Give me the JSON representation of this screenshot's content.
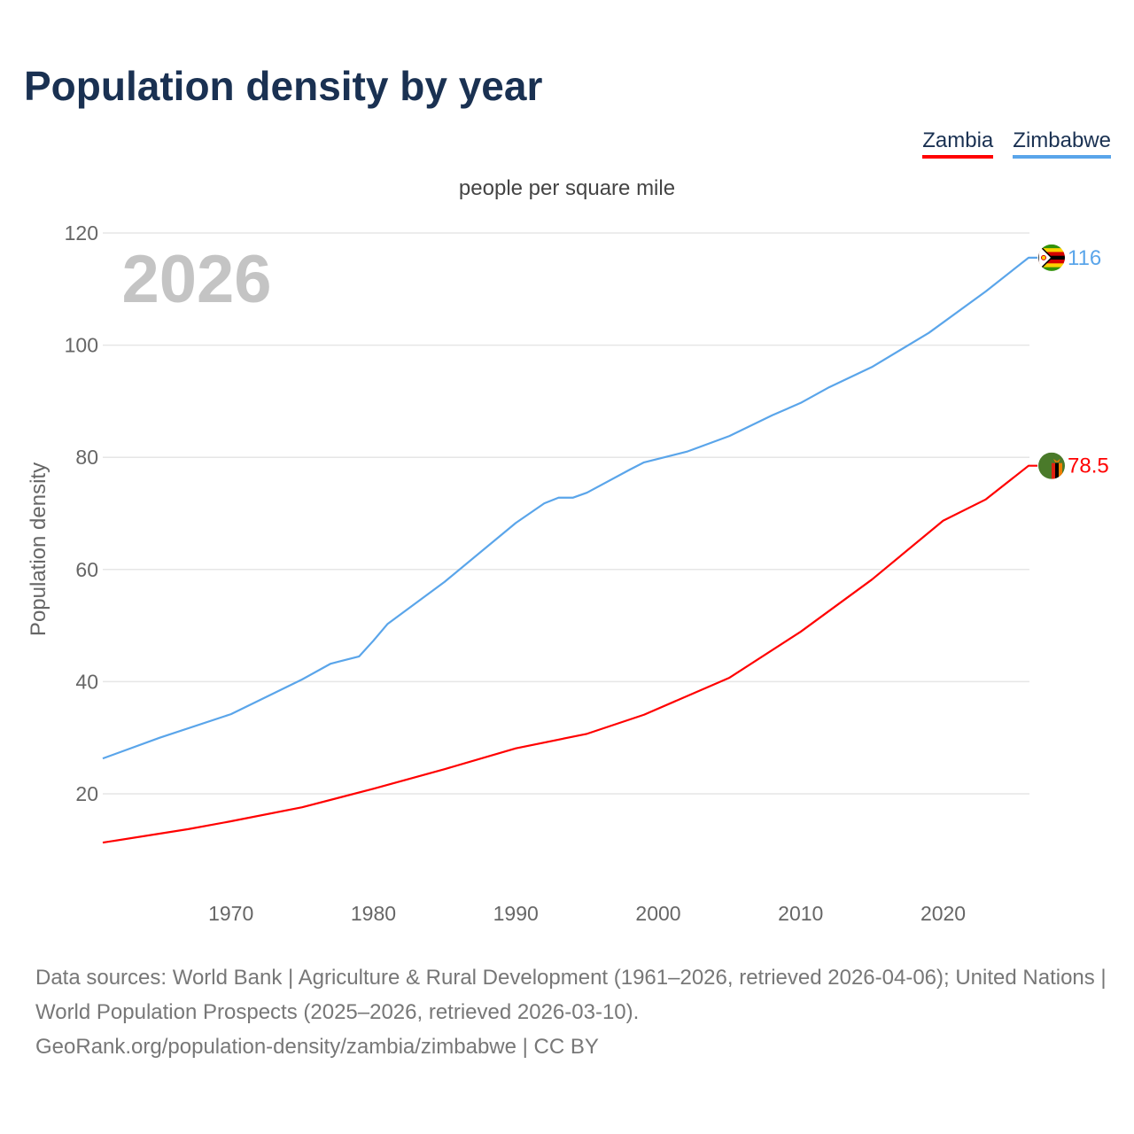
{
  "title": "Population density by year",
  "sources": {
    "line1": "Data sources: World Bank | Agriculture & Rural Development (1961–2026, retrieved 2026-04-06); United Nations | World Population Prospects (2025–2026, retrieved 2026-03-10).",
    "line2": "GeoRank.org/population-density/zambia/zimbabwe | CC BY"
  },
  "chart_data": {
    "type": "line",
    "title": "Population density by year",
    "subtitle": "people per square mile",
    "xlabel": "",
    "ylabel": "Population density",
    "year_watermark": "2026",
    "xlim": [
      1961,
      2026
    ],
    "ylim": [
      6,
      125
    ],
    "xticks": [
      1970,
      1980,
      1990,
      2000,
      2010,
      2020
    ],
    "yticks": [
      20,
      40,
      60,
      80,
      100,
      120
    ],
    "grid": true,
    "legend": "top-right",
    "series": [
      {
        "name": "Zambia",
        "color": "#ff0000",
        "end_label": "78.5",
        "flag": "zambia-flag",
        "points": [
          [
            1961,
            11.3
          ],
          [
            1967,
            13.7
          ],
          [
            1970,
            15.1
          ],
          [
            1975,
            17.6
          ],
          [
            1980,
            20.9
          ],
          [
            1985,
            24.4
          ],
          [
            1990,
            28.1
          ],
          [
            1995,
            30.7
          ],
          [
            1999,
            34.1
          ],
          [
            2005,
            40.7
          ],
          [
            2010,
            48.9
          ],
          [
            2015,
            58.2
          ],
          [
            2020,
            68.7
          ],
          [
            2023,
            72.5
          ],
          [
            2026,
            78.5
          ]
        ]
      },
      {
        "name": "Zimbabwe",
        "color": "#5aa5ea",
        "end_label": "116",
        "flag": "zimbabwe-flag",
        "points": [
          [
            1961,
            26.3
          ],
          [
            1965,
            30.0
          ],
          [
            1970,
            34.2
          ],
          [
            1975,
            40.4
          ],
          [
            1977,
            43.2
          ],
          [
            1979,
            44.5
          ],
          [
            1980,
            47.3
          ],
          [
            1981,
            50.3
          ],
          [
            1985,
            57.8
          ],
          [
            1990,
            68.3
          ],
          [
            1992,
            71.8
          ],
          [
            1993,
            72.8
          ],
          [
            1994,
            72.8
          ],
          [
            1995,
            73.7
          ],
          [
            1998,
            77.8
          ],
          [
            1999,
            79.1
          ],
          [
            2002,
            81.0
          ],
          [
            2005,
            83.8
          ],
          [
            2008,
            87.5
          ],
          [
            2010,
            89.7
          ],
          [
            2012,
            92.5
          ],
          [
            2015,
            96.1
          ],
          [
            2019,
            102.2
          ],
          [
            2023,
            109.6
          ],
          [
            2026,
            115.6
          ]
        ]
      }
    ]
  }
}
